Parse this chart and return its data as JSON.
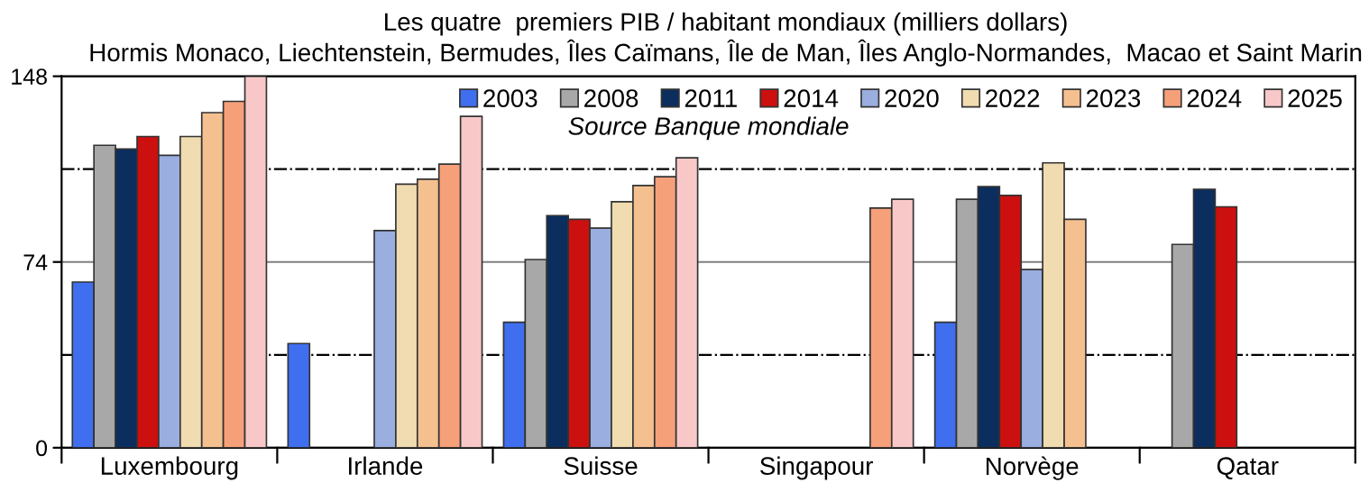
{
  "chart_data": {
    "type": "bar",
    "title": "Les quatre  premiers PIB / habitant mondiaux (milliers dollars)",
    "subtitle": "Hormis Monaco, Liechtenstein, Bermudes, Îles Caïmans, Île de Man, Îles Anglo-Normandes,  Macao et Saint Marin",
    "categories": [
      "Luxembourg",
      "Irlande",
      "Suisse",
      "Singapour",
      "Norvège",
      "Qatar"
    ],
    "series": [
      {
        "name": "2003",
        "color": "#3f6fef",
        "values": [
          66,
          41.5,
          50,
          null,
          50,
          null
        ]
      },
      {
        "name": "2008",
        "color": "#a8a8a8",
        "values": [
          120.5,
          null,
          75,
          null,
          99,
          81
        ]
      },
      {
        "name": "2011",
        "color": "#0b2e5e",
        "values": [
          119,
          null,
          92.5,
          null,
          104,
          103
        ]
      },
      {
        "name": "2014",
        "color": "#cc1010",
        "values": [
          124,
          null,
          91,
          null,
          100.5,
          96
        ]
      },
      {
        "name": "2020",
        "color": "#9aaee0",
        "values": [
          116.5,
          86.5,
          87.5,
          null,
          71,
          null
        ]
      },
      {
        "name": "2022",
        "color": "#f0dcb0",
        "values": [
          124,
          105,
          98,
          null,
          113.5,
          null
        ]
      },
      {
        "name": "2023",
        "color": "#f5c090",
        "values": [
          133.5,
          107,
          104.5,
          null,
          91,
          null
        ]
      },
      {
        "name": "2024",
        "color": "#f6a07a",
        "values": [
          138,
          113,
          108,
          95.5,
          null,
          null
        ]
      },
      {
        "name": "2025",
        "color": "#f8c8c8",
        "values": [
          148,
          132,
          115.5,
          99,
          null,
          null
        ]
      }
    ],
    "ylim": [
      0,
      148
    ],
    "yticks": [
      0,
      74,
      148
    ],
    "grid": "y",
    "legend": "top right",
    "ref_lines": [
      {
        "axis": "y",
        "value": 37,
        "line_style": "dashed"
      },
      {
        "axis": "y",
        "value": 111,
        "line_style": "dashed"
      }
    ],
    "annotations": [
      "Source Banque mondiale"
    ]
  }
}
